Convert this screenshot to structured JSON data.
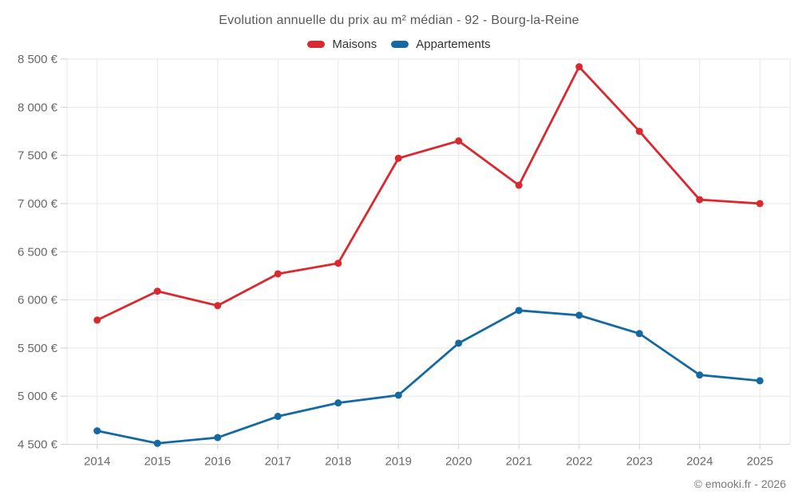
{
  "title": "Evolution annuelle du prix au m² médian - 92 - Bourg-la-Reine",
  "footer": "© emooki.fr - 2026",
  "colors": {
    "maisons": "#d9292e",
    "appartements": "#1569a3",
    "gridline": "#e7e7e7",
    "axis_line": "#d5d5d5",
    "tick": "#cfcfcf",
    "axis_text": "#66696c",
    "title_text": "#58585c",
    "legend_text": "#333337",
    "footer_text": "#797979",
    "background": "#ffffff"
  },
  "chart_data": {
    "type": "line",
    "title": "Evolution annuelle du prix au m² médian - 92 - Bourg-la-Reine",
    "categories": [
      "2014",
      "2015",
      "2016",
      "2017",
      "2018",
      "2019",
      "2020",
      "2021",
      "2022",
      "2023",
      "2024",
      "2025"
    ],
    "series": [
      {
        "name": "Maisons",
        "color": "#d9292e",
        "values": [
          5790,
          6090,
          5940,
          6270,
          6380,
          7470,
          7650,
          7190,
          8420,
          7750,
          7040,
          7000
        ]
      },
      {
        "name": "Appartements",
        "color": "#1569a3",
        "values": [
          4640,
          4510,
          4570,
          4790,
          4930,
          5010,
          5550,
          5890,
          5840,
          5650,
          5220,
          5160
        ]
      }
    ],
    "ylim": [
      4500,
      8500
    ],
    "y_tick_step": 500,
    "y_tick_labels": [
      "4 500 €",
      "5 000 €",
      "5 500 €",
      "6 000 €",
      "6 500 €",
      "7 000 €",
      "7 500 €",
      "8 000 €",
      "8 500 €"
    ],
    "y_unit": "€",
    "grid": true,
    "legend_position": "top"
  }
}
